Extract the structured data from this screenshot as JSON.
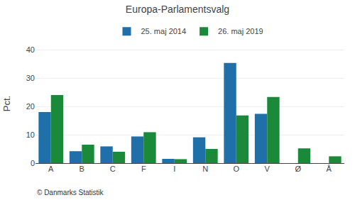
{
  "chart_data": {
    "type": "bar",
    "title": "Europa-Parlamentsvalg",
    "categories": [
      "A",
      "B",
      "C",
      "F",
      "I",
      "N",
      "O",
      "V",
      "Ø",
      "Å"
    ],
    "series": [
      {
        "name": "25. maj 2014",
        "color": "#1f6fa8",
        "values": [
          18.0,
          4.2,
          5.9,
          9.4,
          1.5,
          9.1,
          35.3,
          17.4,
          0.0,
          0.0
        ]
      },
      {
        "name": "26. maj 2019",
        "color": "#1a8a3a",
        "values": [
          24.0,
          6.5,
          4.0,
          10.9,
          1.4,
          5.0,
          16.8,
          23.3,
          5.2,
          2.4
        ]
      }
    ],
    "ylabel": "Pct.",
    "ylim": [
      0,
      42
    ],
    "yticks": [
      0,
      10,
      20,
      30,
      40
    ],
    "grid": true,
    "legend": "top",
    "annotations": [
      "© Danmarks Statistik"
    ]
  }
}
